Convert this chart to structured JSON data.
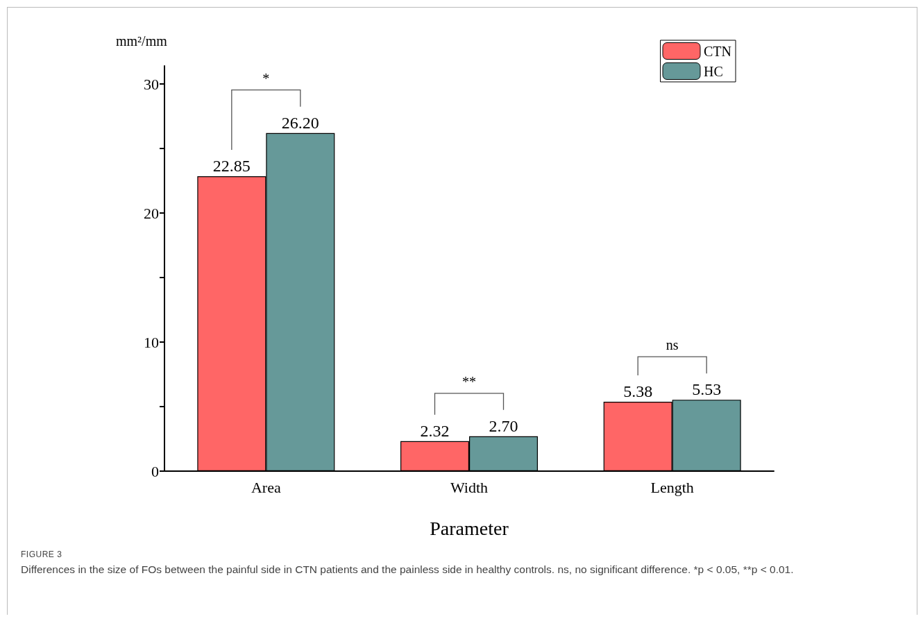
{
  "chart_data": {
    "type": "bar",
    "categories": [
      "Area",
      "Width",
      "Length"
    ],
    "series": [
      {
        "name": "CTN",
        "color": "#ff6666",
        "values": [
          22.85,
          2.32,
          5.38
        ],
        "value_labels": [
          "22.85",
          "2.32",
          "5.38"
        ]
      },
      {
        "name": "HC",
        "color": "#669999",
        "values": [
          26.2,
          2.7,
          5.53
        ],
        "value_labels": [
          "26.20",
          "2.70",
          "5.53"
        ]
      }
    ],
    "ylabel": "mm²/mm",
    "xlabel": "Parameter",
    "ylim": [
      0,
      31.4
    ],
    "yticks": [
      0,
      {
        "value": 5,
        "label": null
      },
      10,
      {
        "value": 15,
        "label": null
      },
      20,
      {
        "value": 25,
        "label": null
      },
      30
    ],
    "grid": false,
    "legend": "top right",
    "annotations": [
      "*",
      "**",
      "ns",
      "FIGURE 3",
      "Differences in the size of FOs between the painful side in CTN patients and the painless side in healthy controls. ns, no significant difference. *p < 0.05, **p < 0.01."
    ]
  }
}
